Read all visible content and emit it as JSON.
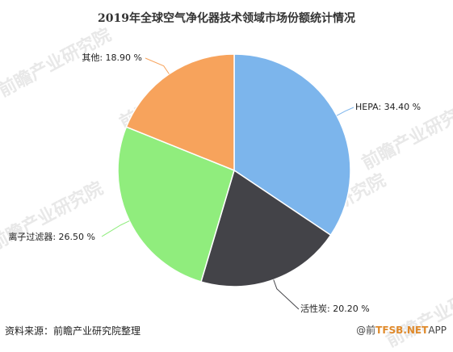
{
  "title": "2019年全球空气净化器技术领域市场份额统计情况",
  "source": "资料来源：前瞻产业研究院整理",
  "watermark": "前瞻产业研究院",
  "brand_text": "@前",
  "brand_net": "TFSB.NET",
  "brand_app": "APP",
  "colors": {
    "hepa": "#7cb5ec",
    "carbon": "#434348",
    "ion": "#90ed7d",
    "other": "#f7a35c",
    "leader": "#888888"
  },
  "chart_data": {
    "type": "pie",
    "title": "2019年全球空气净化器技术领域市场份额统计情况",
    "unit": "%",
    "slices": [
      {
        "label": "HEPA",
        "value": 34.4,
        "display": "HEPA: 34.40 %"
      },
      {
        "label": "活性炭",
        "value": 20.2,
        "display": "活性炭: 20.20 %"
      },
      {
        "label": "离子过滤器",
        "value": 26.5,
        "display": "离子过滤器: 26.50 %"
      },
      {
        "label": "其他",
        "value": 18.9,
        "display": "其他: 18.90 %"
      }
    ]
  }
}
